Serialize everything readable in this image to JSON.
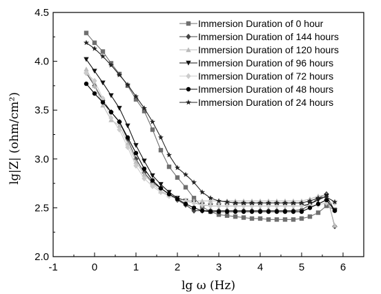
{
  "chart_data": {
    "type": "line",
    "xlabel": "lg ω (Hz)",
    "ylabel": "lg|Z| (ohm/cm²)",
    "xlim": [
      -1,
      6.5
    ],
    "ylim": [
      2.0,
      4.5
    ],
    "xticks": [
      -1,
      0,
      1,
      2,
      3,
      4,
      5,
      6
    ],
    "yticks": [
      2.0,
      2.5,
      3.0,
      3.5,
      4.0,
      4.5
    ],
    "xtick_labels": [
      "-1",
      "0",
      "1",
      "2",
      "3",
      "4",
      "5",
      "6"
    ],
    "ytick_labels": [
      "2.0",
      "2.5",
      "3.0",
      "3.5",
      "4.0",
      "4.5"
    ],
    "grid": false,
    "legend_position": "top-right",
    "series": [
      {
        "name": "Immersion Duration of 0 hour",
        "marker": "square",
        "color": "#6f6f6f",
        "x": [
          -0.2,
          0.0,
          0.2,
          0.4,
          0.6,
          0.8,
          1.0,
          1.2,
          1.4,
          1.6,
          1.8,
          2.0,
          2.2,
          2.4,
          2.6,
          2.8,
          3.0,
          3.2,
          3.4,
          3.6,
          3.8,
          4.0,
          4.2,
          4.4,
          4.6,
          4.8,
          5.0,
          5.2,
          5.4,
          5.6,
          5.8
        ],
        "y": [
          4.29,
          4.19,
          4.1,
          3.98,
          3.87,
          3.75,
          3.61,
          3.49,
          3.3,
          3.09,
          2.92,
          2.81,
          2.71,
          2.6,
          2.51,
          2.46,
          2.43,
          2.42,
          2.41,
          2.4,
          2.39,
          2.39,
          2.38,
          2.38,
          2.38,
          2.38,
          2.39,
          2.41,
          2.45,
          2.52,
          2.48
        ]
      },
      {
        "name": "Immersion Duration of 144 hours",
        "marker": "diamond",
        "color": "#444444",
        "x": [
          -0.2,
          0.0,
          0.2,
          0.4,
          0.6,
          0.8,
          1.0,
          1.2,
          1.4,
          1.6,
          1.8,
          2.0,
          2.2,
          2.4,
          2.6,
          2.8,
          3.0,
          3.2,
          3.4,
          3.6,
          3.8,
          4.0,
          4.2,
          4.4,
          4.6,
          4.8,
          5.0,
          5.2,
          5.4,
          5.6,
          5.8
        ],
        "y": [
          3.88,
          3.75,
          3.6,
          3.48,
          3.38,
          3.2,
          3.0,
          2.86,
          2.76,
          2.7,
          2.64,
          2.58,
          2.53,
          2.47,
          2.47,
          2.47,
          2.47,
          2.47,
          2.47,
          2.47,
          2.47,
          2.47,
          2.47,
          2.47,
          2.47,
          2.47,
          2.48,
          2.53,
          2.6,
          2.64,
          2.31
        ]
      },
      {
        "name": "Immersion Duration of 120 hours",
        "marker": "triangle-up",
        "color": "#bbbbbb",
        "x": [
          -0.2,
          0.0,
          0.2,
          0.4,
          0.6,
          0.8,
          1.0,
          1.2,
          1.4,
          1.6,
          1.8,
          2.0,
          2.2,
          2.4,
          2.6,
          2.8,
          3.0,
          3.2,
          3.4,
          3.6,
          3.8,
          4.0,
          4.2,
          4.4,
          4.6,
          4.8,
          5.0,
          5.2,
          5.4,
          5.6,
          5.8
        ],
        "y": [
          3.92,
          3.75,
          3.55,
          3.4,
          3.34,
          3.16,
          2.97,
          2.84,
          2.75,
          2.67,
          2.63,
          2.6,
          2.58,
          2.57,
          2.57,
          2.57,
          2.57,
          2.57,
          2.57,
          2.57,
          2.57,
          2.57,
          2.57,
          2.57,
          2.57,
          2.57,
          2.57,
          2.59,
          2.62,
          2.63,
          2.32
        ]
      },
      {
        "name": "Immersion Duration of 96 hours",
        "marker": "triangle-down",
        "color": "#111111",
        "x": [
          -0.2,
          0.0,
          0.2,
          0.4,
          0.6,
          0.8,
          1.0,
          1.2,
          1.4,
          1.6,
          1.8,
          2.0,
          2.2,
          2.4,
          2.6,
          2.8,
          3.0,
          3.2,
          3.4,
          3.6,
          3.8,
          4.0,
          4.2,
          4.4,
          4.6,
          4.8,
          5.0,
          5.2,
          5.4,
          5.6,
          5.8
        ],
        "y": [
          4.02,
          3.9,
          3.78,
          3.65,
          3.52,
          3.34,
          3.14,
          2.98,
          2.83,
          2.74,
          2.66,
          2.6,
          2.57,
          2.55,
          2.53,
          2.52,
          2.52,
          2.52,
          2.52,
          2.52,
          2.52,
          2.52,
          2.52,
          2.52,
          2.52,
          2.52,
          2.52,
          2.54,
          2.58,
          2.62,
          2.47
        ]
      },
      {
        "name": "Immersion Duration of 72 hours",
        "marker": "diamond",
        "color": "#cccccc",
        "x": [
          -0.2,
          0.0,
          0.2,
          0.4,
          0.6,
          0.8,
          1.0,
          1.2,
          1.4,
          1.6,
          1.8,
          2.0,
          2.2,
          2.4,
          2.6,
          2.8,
          3.0,
          3.2,
          3.4,
          3.6,
          3.8,
          4.0,
          4.2,
          4.4,
          4.6,
          4.8,
          5.0,
          5.2,
          5.4,
          5.6,
          5.8
        ],
        "y": [
          3.88,
          3.8,
          3.62,
          3.42,
          3.3,
          3.12,
          2.93,
          2.8,
          2.72,
          2.66,
          2.62,
          2.59,
          2.57,
          2.55,
          2.53,
          2.52,
          2.52,
          2.52,
          2.52,
          2.52,
          2.52,
          2.52,
          2.52,
          2.52,
          2.52,
          2.52,
          2.52,
          2.52,
          2.53,
          2.55,
          2.55
        ]
      },
      {
        "name": "Immersion Duration of 48 hours",
        "marker": "circle",
        "color": "#000000",
        "x": [
          -0.2,
          0.0,
          0.2,
          0.4,
          0.6,
          0.8,
          1.0,
          1.2,
          1.4,
          1.6,
          1.8,
          2.0,
          2.2,
          2.4,
          2.6,
          2.8,
          3.0,
          3.2,
          3.4,
          3.6,
          3.8,
          4.0,
          4.2,
          4.4,
          4.6,
          4.8,
          5.0,
          5.2,
          5.4,
          5.6,
          5.8
        ],
        "y": [
          3.77,
          3.67,
          3.58,
          3.48,
          3.38,
          3.22,
          3.06,
          2.9,
          2.78,
          2.7,
          2.64,
          2.59,
          2.54,
          2.5,
          2.47,
          2.46,
          2.46,
          2.46,
          2.46,
          2.46,
          2.46,
          2.46,
          2.46,
          2.46,
          2.46,
          2.46,
          2.46,
          2.5,
          2.54,
          2.58,
          2.47
        ]
      },
      {
        "name": "Immersion Duration of 24 hours",
        "marker": "star",
        "color": "#222222",
        "x": [
          -0.2,
          0.0,
          0.2,
          0.4,
          0.6,
          0.8,
          1.0,
          1.2,
          1.4,
          1.6,
          1.8,
          2.0,
          2.2,
          2.4,
          2.6,
          2.8,
          3.0,
          3.2,
          3.4,
          3.6,
          3.8,
          4.0,
          4.2,
          4.4,
          4.6,
          4.8,
          5.0,
          5.2,
          5.4,
          5.6,
          5.8
        ],
        "y": [
          4.19,
          4.13,
          4.05,
          3.96,
          3.86,
          3.76,
          3.64,
          3.52,
          3.38,
          3.22,
          3.04,
          2.91,
          2.84,
          2.76,
          2.66,
          2.6,
          2.57,
          2.56,
          2.55,
          2.55,
          2.55,
          2.55,
          2.55,
          2.55,
          2.55,
          2.55,
          2.55,
          2.57,
          2.6,
          2.61,
          2.56
        ]
      }
    ]
  }
}
